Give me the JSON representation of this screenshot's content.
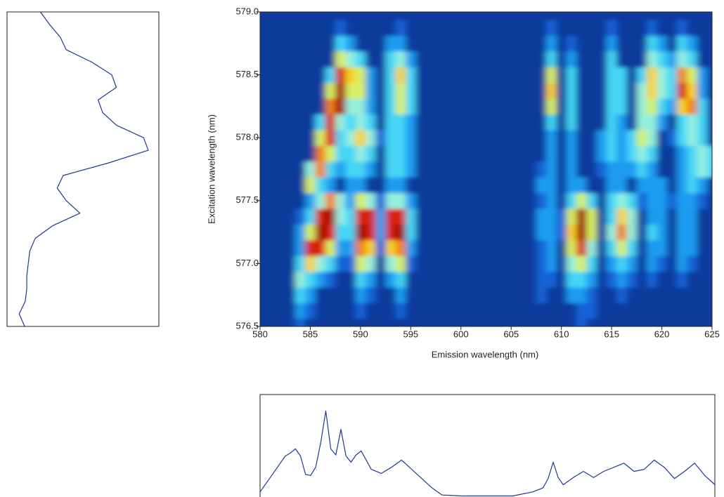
{
  "chart_data": [
    {
      "type": "heatmap",
      "x_label": "Emission wavelength (nm)",
      "y_label": "Excitation wavelength (nm)",
      "x": [
        580,
        581,
        582,
        583,
        584,
        585,
        586,
        587,
        588,
        589,
        590,
        591,
        592,
        593,
        594,
        595,
        596,
        597,
        598,
        599,
        600,
        601,
        602,
        603,
        604,
        605,
        606,
        607,
        608,
        609,
        610,
        611,
        612,
        613,
        614,
        615,
        616,
        617,
        618,
        619,
        620,
        621,
        622,
        623,
        624,
        625
      ],
      "y": [
        576.5,
        576.625,
        576.75,
        576.875,
        577,
        577.125,
        577.25,
        577.375,
        577.5,
        577.625,
        577.75,
        577.875,
        578,
        578.125,
        578.25,
        578.375,
        578.5,
        578.625,
        578.75,
        578.875,
        579
      ],
      "z": [
        [
          0,
          0,
          0,
          0,
          1,
          0,
          0,
          0,
          0,
          0,
          0,
          0,
          0,
          0,
          0,
          0,
          0,
          0,
          0,
          0,
          0,
          0,
          0,
          0,
          0,
          0,
          0,
          0,
          0,
          0,
          0,
          0,
          1,
          0,
          0,
          0,
          0,
          0,
          0,
          0,
          0,
          0,
          0,
          0,
          0,
          0
        ],
        [
          0,
          0,
          0,
          0,
          2,
          1,
          0,
          0,
          0,
          0,
          1,
          0,
          0,
          0,
          1,
          0,
          0,
          0,
          0,
          0,
          0,
          0,
          0,
          0,
          0,
          0,
          0,
          0,
          0,
          0,
          0,
          0,
          1,
          1,
          0,
          0,
          0,
          0,
          0,
          0,
          0,
          0,
          0,
          0,
          0,
          0
        ],
        [
          0,
          0,
          0,
          0,
          3,
          2,
          0,
          0,
          0,
          0,
          2,
          1,
          0,
          0,
          2,
          0,
          0,
          0,
          0,
          0,
          0,
          0,
          0,
          0,
          0,
          0,
          0,
          0,
          1,
          0,
          0,
          2,
          2,
          1,
          0,
          0,
          1,
          0,
          0,
          0,
          0,
          0,
          0,
          0,
          0,
          0
        ],
        [
          0,
          0,
          0,
          0,
          4,
          3,
          2,
          1,
          0,
          0,
          3,
          2,
          0,
          2,
          3,
          0,
          0,
          0,
          0,
          0,
          0,
          0,
          0,
          0,
          0,
          0,
          0,
          0,
          1,
          1,
          0,
          3,
          3,
          2,
          0,
          1,
          2,
          1,
          0,
          1,
          0,
          0,
          1,
          0,
          0,
          0
        ],
        [
          0,
          0,
          0,
          0,
          3,
          6,
          4,
          3,
          1,
          1,
          5,
          4,
          0,
          4,
          5,
          1,
          0,
          0,
          0,
          0,
          0,
          0,
          0,
          0,
          0,
          0,
          0,
          0,
          1,
          2,
          0,
          4,
          5,
          3,
          0,
          2,
          3,
          2,
          0,
          2,
          1,
          0,
          2,
          1,
          0,
          0
        ],
        [
          0,
          0,
          0,
          0,
          2,
          8,
          8,
          5,
          2,
          2,
          7,
          6,
          1,
          6,
          7,
          2,
          0,
          0,
          0,
          0,
          0,
          0,
          0,
          0,
          0,
          0,
          0,
          0,
          1,
          2,
          0,
          5,
          8,
          4,
          0,
          3,
          5,
          3,
          0,
          2,
          2,
          0,
          2,
          2,
          0,
          0
        ],
        [
          0,
          0,
          0,
          0,
          2,
          5,
          9,
          8,
          3,
          3,
          9,
          8,
          2,
          8,
          9,
          3,
          0,
          0,
          0,
          0,
          0,
          0,
          0,
          0,
          0,
          0,
          0,
          0,
          2,
          2,
          1,
          6,
          9,
          5,
          0,
          4,
          7,
          4,
          0,
          3,
          2,
          0,
          2,
          2,
          0,
          0
        ],
        [
          0,
          0,
          0,
          0,
          1,
          3,
          8,
          9,
          4,
          3,
          8,
          8,
          2,
          8,
          8,
          3,
          0,
          0,
          0,
          0,
          0,
          0,
          0,
          0,
          0,
          0,
          0,
          0,
          2,
          2,
          1,
          5,
          9,
          5,
          0,
          3,
          6,
          4,
          0,
          2,
          2,
          0,
          2,
          2,
          0,
          0
        ],
        [
          0,
          0,
          0,
          0,
          0,
          2,
          4,
          7,
          4,
          2,
          5,
          4,
          1,
          4,
          4,
          2,
          0,
          0,
          0,
          0,
          0,
          0,
          0,
          0,
          0,
          0,
          0,
          0,
          1,
          2,
          0,
          3,
          5,
          3,
          0,
          3,
          4,
          3,
          1,
          2,
          2,
          1,
          2,
          2,
          1,
          0
        ],
        [
          0,
          0,
          0,
          0,
          0,
          5,
          3,
          2,
          0,
          2,
          2,
          0,
          0,
          2,
          2,
          0,
          0,
          0,
          0,
          0,
          0,
          0,
          0,
          0,
          0,
          0,
          0,
          0,
          2,
          2,
          0,
          2,
          2,
          0,
          0,
          2,
          2,
          0,
          2,
          2,
          2,
          0,
          2,
          3,
          2,
          0
        ],
        [
          0,
          0,
          0,
          0,
          0,
          4,
          7,
          3,
          2,
          3,
          3,
          2,
          0,
          3,
          3,
          2,
          0,
          0,
          0,
          0,
          0,
          0,
          0,
          0,
          0,
          0,
          0,
          0,
          1,
          2,
          0,
          2,
          0,
          0,
          1,
          2,
          2,
          2,
          3,
          2,
          0,
          0,
          2,
          3,
          4,
          3
        ],
        [
          0,
          0,
          0,
          0,
          0,
          0,
          7,
          5,
          3,
          3,
          4,
          3,
          0,
          3,
          3,
          2,
          0,
          0,
          0,
          0,
          0,
          0,
          0,
          0,
          0,
          0,
          0,
          0,
          0,
          2,
          0,
          2,
          0,
          0,
          2,
          3,
          2,
          3,
          4,
          3,
          0,
          0,
          2,
          3,
          4,
          3
        ],
        [
          0,
          0,
          0,
          0,
          0,
          0,
          5,
          8,
          3,
          4,
          6,
          4,
          1,
          3,
          3,
          2,
          0,
          0,
          0,
          0,
          0,
          0,
          0,
          0,
          0,
          0,
          0,
          0,
          0,
          2,
          0,
          2,
          0,
          0,
          2,
          3,
          2,
          3,
          5,
          4,
          0,
          1,
          3,
          4,
          3,
          0
        ],
        [
          0,
          0,
          0,
          0,
          0,
          0,
          3,
          8,
          4,
          3,
          4,
          3,
          0,
          3,
          3,
          2,
          0,
          0,
          0,
          0,
          0,
          0,
          0,
          0,
          0,
          0,
          0,
          0,
          0,
          3,
          0,
          3,
          0,
          0,
          0,
          3,
          2,
          0,
          4,
          4,
          2,
          0,
          3,
          4,
          3,
          0
        ],
        [
          0,
          0,
          0,
          0,
          0,
          0,
          0,
          7,
          9,
          4,
          4,
          2,
          0,
          3,
          5,
          3,
          0,
          0,
          0,
          0,
          0,
          0,
          0,
          0,
          0,
          0,
          0,
          0,
          0,
          5,
          0,
          3,
          0,
          0,
          0,
          3,
          3,
          0,
          4,
          5,
          3,
          2,
          6,
          7,
          3,
          0
        ],
        [
          0,
          0,
          0,
          0,
          0,
          0,
          0,
          5,
          9,
          5,
          5,
          2,
          0,
          3,
          5,
          3,
          0,
          0,
          0,
          0,
          0,
          0,
          0,
          0,
          0,
          0,
          0,
          0,
          0,
          6,
          0,
          3,
          0,
          0,
          0,
          3,
          3,
          0,
          4,
          6,
          4,
          3,
          8,
          6,
          2,
          0
        ],
        [
          0,
          0,
          0,
          0,
          0,
          0,
          0,
          3,
          8,
          6,
          5,
          2,
          0,
          3,
          6,
          3,
          0,
          0,
          0,
          0,
          0,
          0,
          0,
          0,
          0,
          0,
          0,
          0,
          0,
          5,
          0,
          3,
          0,
          0,
          0,
          3,
          3,
          0,
          3,
          6,
          4,
          3,
          7,
          5,
          2,
          0
        ],
        [
          0,
          0,
          0,
          0,
          0,
          0,
          0,
          0,
          5,
          4,
          3,
          0,
          0,
          3,
          4,
          2,
          0,
          0,
          0,
          0,
          0,
          0,
          0,
          0,
          0,
          0,
          0,
          0,
          0,
          3,
          0,
          2,
          0,
          0,
          0,
          3,
          0,
          0,
          0,
          4,
          3,
          2,
          4,
          3,
          0,
          0
        ],
        [
          0,
          0,
          0,
          0,
          0,
          0,
          0,
          0,
          3,
          2,
          0,
          0,
          0,
          2,
          2,
          0,
          0,
          0,
          0,
          0,
          0,
          0,
          0,
          0,
          0,
          0,
          0,
          0,
          0,
          2,
          0,
          1,
          0,
          0,
          0,
          2,
          0,
          0,
          0,
          3,
          2,
          0,
          3,
          2,
          0,
          0
        ],
        [
          0,
          0,
          0,
          0,
          0,
          0,
          0,
          0,
          1,
          0,
          0,
          0,
          0,
          0,
          1,
          0,
          0,
          0,
          0,
          0,
          0,
          0,
          0,
          0,
          0,
          0,
          0,
          0,
          0,
          1,
          0,
          0,
          0,
          0,
          0,
          1,
          0,
          0,
          0,
          1,
          0,
          0,
          1,
          0,
          0,
          0
        ],
        [
          0,
          0,
          0,
          0,
          0,
          0,
          0,
          0,
          0,
          0,
          0,
          0,
          0,
          0,
          0,
          0,
          0,
          0,
          0,
          0,
          0,
          0,
          0,
          0,
          0,
          0,
          0,
          0,
          0,
          0,
          0,
          0,
          0,
          0,
          0,
          0,
          0,
          0,
          0,
          0,
          0,
          0,
          0,
          0,
          0,
          0
        ]
      ],
      "xlim": [
        580,
        625
      ],
      "ylim": [
        576.5,
        579
      ],
      "xticks": [
        580,
        585,
        590,
        595,
        600,
        605,
        610,
        615,
        620,
        625
      ],
      "yticks": [
        576.5,
        {
          "value": 577,
          "label": "577.0"
        },
        577.5,
        {
          "value": 578,
          "label": "578.0"
        },
        578.5,
        {
          "value": 579,
          "label": "579.0"
        }
      ],
      "colormap": [
        "#0b3b9c",
        "#1262d8",
        "#1f9cf0",
        "#44d6f6",
        "#96f0dc",
        "#d8f060",
        "#f8d022",
        "#f08010",
        "#d82008",
        "#a00000"
      ]
    },
    {
      "type": "line",
      "orientation": "vertical",
      "x": [
        576.5,
        576.6,
        576.7,
        576.8,
        576.9,
        577,
        577.1,
        577.2,
        577.3,
        577.4,
        577.5,
        577.6,
        577.7,
        577.8,
        577.9,
        578,
        578.1,
        578.2,
        578.3,
        578.4,
        578.5,
        578.6,
        578.7,
        578.8,
        578.9,
        579
      ],
      "values": [
        11.6,
        8,
        12,
        13,
        13,
        14,
        15,
        18.5,
        30,
        48,
        39,
        33,
        37,
        67,
        93,
        90,
        72,
        63,
        60,
        72,
        69,
        56,
        39,
        35,
        28,
        22
      ],
      "xlim": [
        576.5,
        579
      ],
      "ylim": [
        0,
        100
      ],
      "color": "#1f3a8a"
    },
    {
      "type": "line",
      "x": [
        580,
        581,
        582,
        582.5,
        583,
        583.5,
        584,
        584.5,
        585,
        585.5,
        586,
        586.5,
        587,
        587.5,
        588,
        588.5,
        589,
        589.5,
        590,
        590.5,
        591,
        592,
        593,
        594,
        595,
        596,
        597,
        598,
        600,
        605,
        607,
        608,
        608.5,
        609,
        609.5,
        610,
        611,
        612,
        613,
        614,
        615,
        616,
        617,
        618,
        619,
        620,
        621,
        622,
        623,
        624,
        625
      ],
      "values": [
        5,
        19,
        33,
        40,
        43,
        47,
        40,
        22,
        21,
        29,
        53,
        84,
        47,
        41,
        66,
        40,
        34,
        41,
        45,
        36,
        27,
        23,
        29,
        36,
        27,
        18,
        9,
        2,
        1,
        1,
        5,
        9,
        18,
        34,
        19,
        12,
        19,
        25,
        19,
        25,
        29,
        33,
        25,
        27,
        36,
        29,
        18,
        25,
        33,
        21,
        12
      ],
      "xlim": [
        580,
        625
      ],
      "ylim": [
        0,
        100
      ],
      "color": "#1f3a8a"
    }
  ]
}
